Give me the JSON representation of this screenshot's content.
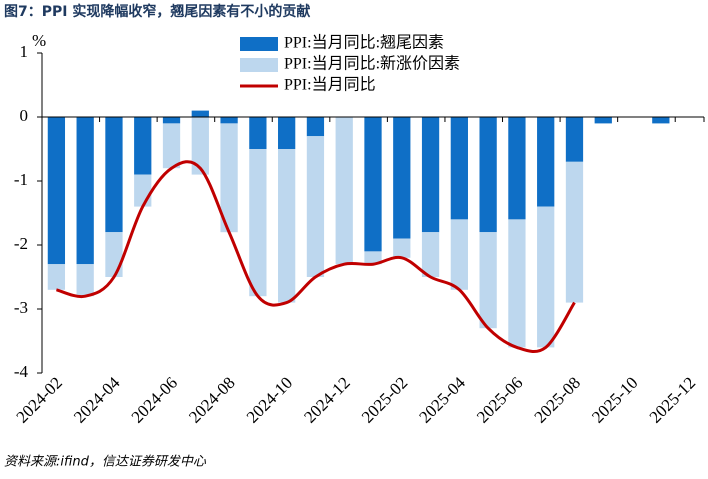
{
  "chart_data": {
    "type": "bar",
    "title": "图7：PPI 实现降幅收窄，翘尾因素有不小的贡献",
    "y_label": "%",
    "source": "资料来源:ifind，信达证券研发中心",
    "categories": [
      "2024-02",
      null,
      "2024-04",
      null,
      "2024-06",
      null,
      "2024-08",
      null,
      "2024-10",
      null,
      "2024-12",
      null,
      "2025-02",
      null,
      "2025-04",
      null,
      "2025-06",
      null,
      "2025-08",
      null,
      "2025-10",
      null,
      "2025-12"
    ],
    "series": [
      {
        "name": "PPI:当月同比:翘尾因素",
        "color": "#0f6fc6",
        "stack": true,
        "values": [
          -2.3,
          -2.3,
          -1.8,
          -0.9,
          -0.1,
          0.1,
          -0.1,
          -0.5,
          -0.5,
          -0.3,
          0,
          -2.1,
          -1.9,
          -1.8,
          -1.6,
          -1.8,
          -1.6,
          -1.4,
          -0.7,
          -0.1,
          null,
          -0.1,
          null
        ]
      },
      {
        "name": "PPI:当月同比:新涨价因素",
        "color": "#bdd7ee",
        "stack": true,
        "values": [
          -0.4,
          -0.5,
          -0.7,
          -0.5,
          -0.7,
          -0.9,
          -1.7,
          -2.3,
          -2.4,
          -2.2,
          -2.3,
          -0.2,
          -0.3,
          -0.7,
          -1.1,
          -1.5,
          -2.0,
          -2.2,
          -2.2,
          null,
          null,
          null,
          null
        ]
      },
      {
        "name": "PPI:当月同比",
        "color": "#c00000",
        "type": "line",
        "values": [
          -2.7,
          -2.8,
          -2.5,
          -1.4,
          -0.8,
          -0.8,
          -1.8,
          -2.8,
          -2.9,
          -2.5,
          -2.3,
          -2.3,
          -2.2,
          -2.5,
          -2.7,
          -3.3,
          -3.6,
          -3.6,
          -2.9,
          null,
          null,
          null,
          null
        ]
      }
    ],
    "ylim": [
      -4,
      1
    ],
    "yticks": [
      1,
      0,
      -1,
      -2,
      -3,
      -4
    ],
    "legend": "top"
  }
}
